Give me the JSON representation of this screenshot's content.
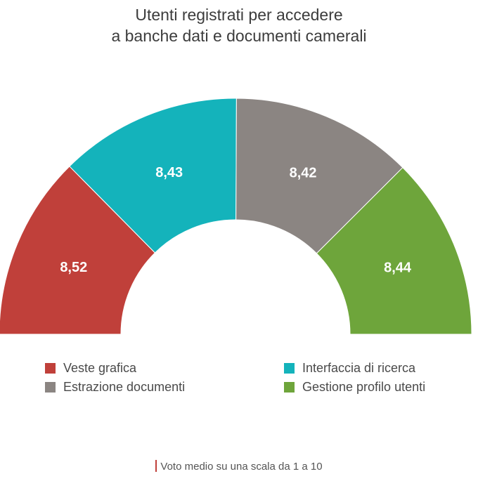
{
  "title_line1": "Utenti registrati per accedere",
  "title_line2": "a banche dati e documenti camerali",
  "chart_data": {
    "type": "pie",
    "subtype": "half-donut",
    "series": [
      {
        "name": "Veste grafica",
        "value": 8.52,
        "label": "8,52",
        "color": "#c0403a"
      },
      {
        "name": "Interfaccia di ricerca",
        "value": 8.43,
        "label": "8,43",
        "color": "#14b3bb"
      },
      {
        "name": "Estrazione documenti",
        "value": 8.42,
        "label": "8,42",
        "color": "#8b8582"
      },
      {
        "name": "Gestione profilo utenti",
        "value": 8.44,
        "label": "8,44",
        "color": "#6ea53b"
      }
    ],
    "legend_placement": "bottom",
    "legend_order": [
      "Veste grafica",
      "Interfaccia di ricerca",
      "Estrazione documenti",
      "Gestione profilo utenti"
    ]
  },
  "footnote": "Voto medio su una scala da 1 a 10"
}
